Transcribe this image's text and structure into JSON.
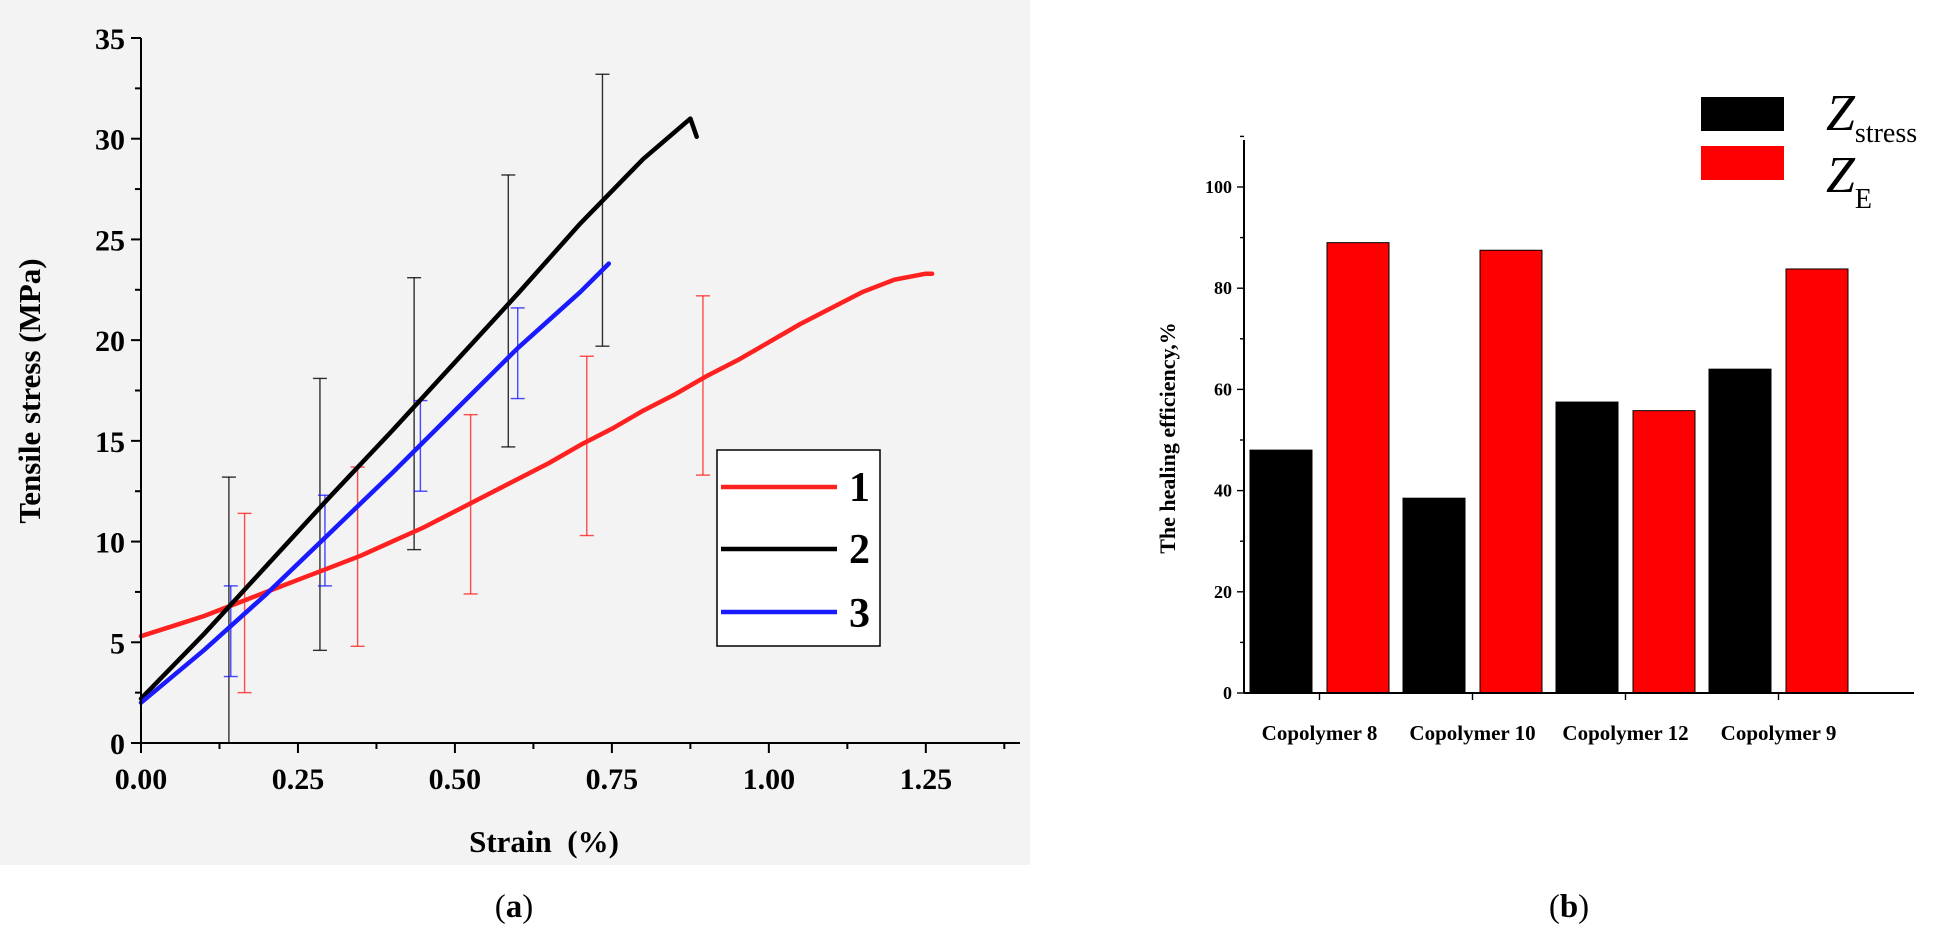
{
  "panels": {
    "a": {
      "caption_open": "(",
      "caption_letter": "a",
      "caption_close": ")"
    },
    "b": {
      "caption_open": "(",
      "caption_letter": "b",
      "caption_close": ")"
    }
  },
  "chart_data": [
    {
      "type": "line",
      "title": "",
      "xlabel": "Strain  (%)",
      "ylabel": "Tensile stress (MPa)",
      "xlim": [
        0,
        1.4
      ],
      "ylim": [
        0,
        35
      ],
      "xticks": [
        0,
        0.25,
        0.5,
        0.75,
        1.0,
        1.25
      ],
      "xtick_labels": [
        "0.00",
        "0.25",
        "0.50",
        "0.75",
        "1.00",
        "1.25"
      ],
      "yticks": [
        0,
        5,
        10,
        15,
        20,
        25,
        30,
        35
      ],
      "ytick_labels": [
        "0",
        "5",
        "10",
        "15",
        "20",
        "25",
        "30",
        "35"
      ],
      "legend_position": "center-right",
      "series": [
        {
          "name": "1",
          "color": "#ff2020",
          "x": [
            0,
            0.05,
            0.1,
            0.15,
            0.2,
            0.25,
            0.3,
            0.35,
            0.4,
            0.45,
            0.5,
            0.55,
            0.6,
            0.65,
            0.7,
            0.75,
            0.8,
            0.85,
            0.9,
            0.95,
            1.0,
            1.05,
            1.1,
            1.15,
            1.2,
            1.25,
            1.26
          ],
          "y": [
            5.3,
            5.8,
            6.3,
            6.9,
            7.5,
            8.1,
            8.7,
            9.3,
            10.0,
            10.7,
            11.5,
            12.3,
            13.1,
            13.9,
            14.8,
            15.6,
            16.5,
            17.3,
            18.2,
            19.0,
            19.9,
            20.8,
            21.6,
            22.4,
            23.0,
            23.3,
            23.3
          ],
          "error_bars": [
            {
              "x": 0.165,
              "low": 2.5,
              "high": 11.4
            },
            {
              "x": 0.345,
              "low": 4.8,
              "high": 13.7
            },
            {
              "x": 0.525,
              "low": 7.4,
              "high": 16.3
            },
            {
              "x": 0.71,
              "low": 10.3,
              "high": 19.2
            },
            {
              "x": 0.895,
              "low": 13.3,
              "high": 22.2
            }
          ]
        },
        {
          "name": "2",
          "color": "#000000",
          "x": [
            0,
            0.1,
            0.2,
            0.3,
            0.4,
            0.5,
            0.6,
            0.7,
            0.8,
            0.875,
            0.885
          ],
          "y": [
            2.2,
            5.4,
            8.8,
            12.2,
            15.5,
            18.9,
            22.3,
            25.8,
            29.0,
            31.0,
            30.1
          ],
          "error_bars": [
            {
              "x": 0.14,
              "low": 0.0,
              "high": 13.2
            },
            {
              "x": 0.285,
              "low": 4.6,
              "high": 18.1
            },
            {
              "x": 0.435,
              "low": 9.6,
              "high": 23.1
            },
            {
              "x": 0.585,
              "low": 14.7,
              "high": 28.2
            },
            {
              "x": 0.735,
              "low": 19.7,
              "high": 33.2
            }
          ]
        },
        {
          "name": "3",
          "color": "#1a1aff",
          "x": [
            0,
            0.1,
            0.2,
            0.3,
            0.4,
            0.5,
            0.6,
            0.7,
            0.745
          ],
          "y": [
            2.0,
            4.6,
            7.4,
            10.4,
            13.4,
            16.5,
            19.6,
            22.4,
            23.8
          ],
          "error_bars": [
            {
              "x": 0.143,
              "low": 3.3,
              "high": 7.8
            },
            {
              "x": 0.293,
              "low": 7.8,
              "high": 12.3
            },
            {
              "x": 0.445,
              "low": 12.5,
              "high": 17.0
            },
            {
              "x": 0.6,
              "low": 17.1,
              "high": 21.6
            }
          ]
        }
      ]
    },
    {
      "type": "bar",
      "title": "",
      "xlabel": "",
      "ylabel": "The healing efficiency,%",
      "ylim": [
        0,
        110
      ],
      "yticks": [
        0,
        20,
        40,
        60,
        80,
        100
      ],
      "ytick_labels": [
        "0",
        "20",
        "40",
        "60",
        "80",
        "100"
      ],
      "categories": [
        "Copolymer 8",
        "Copolymer 10",
        "Copolymer 12",
        "Copolymer 9"
      ],
      "legend_position": "top-right",
      "series": [
        {
          "name": "Z",
          "name_sub": "stress",
          "color": "#000000",
          "values": [
            48,
            38.5,
            57.5,
            64
          ]
        },
        {
          "name": "Z",
          "name_sub": "E",
          "color": "#ff0000",
          "values": [
            89,
            87.5,
            55.8,
            83.8
          ]
        }
      ]
    }
  ]
}
